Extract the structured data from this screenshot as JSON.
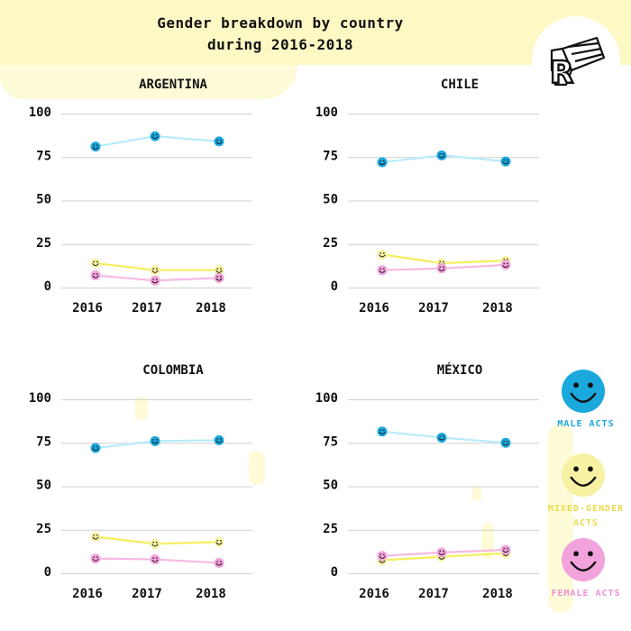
{
  "header": {
    "title_line1": "Gender breakdown by country",
    "title_line2": "during 2016-2018",
    "logo_icon": "r-brand-logo-icon"
  },
  "colors": {
    "male": "#1ba8dd",
    "male_line": "#b6ecfa",
    "mixed": "#f7f2a3",
    "mixed_line": "#f6ee5a",
    "female": "#f3a3dc",
    "female_line": "#f7b9e4",
    "grid": "#d0d0d0",
    "band": "#fcf9c4"
  },
  "legend": [
    {
      "key": "male",
      "label": "MALE ACTS",
      "icon": "smiley-face-icon"
    },
    {
      "key": "mixed",
      "label": "MIXED-GENDER ACTS",
      "icon": "smiley-face-icon"
    },
    {
      "key": "female",
      "label": "FEMALE ACTS",
      "icon": "smiley-face-icon"
    }
  ],
  "chart_data": [
    {
      "type": "line",
      "title": "ARGENTINA",
      "categories": [
        "2016",
        "2017",
        "2018"
      ],
      "ylim": [
        0,
        100
      ],
      "yticks": [
        0,
        25,
        50,
        75,
        100
      ],
      "grid": true,
      "series": [
        {
          "name": "MALE ACTS",
          "key": "male",
          "values": [
            81,
            87,
            84
          ]
        },
        {
          "name": "MIXED-GENDER ACTS",
          "key": "mixed",
          "values": [
            14,
            10,
            10
          ]
        },
        {
          "name": "FEMALE ACTS",
          "key": "female",
          "values": [
            7,
            4,
            5.5
          ]
        }
      ]
    },
    {
      "type": "line",
      "title": "CHILE",
      "categories": [
        "2016",
        "2017",
        "2018"
      ],
      "ylim": [
        0,
        100
      ],
      "yticks": [
        0,
        25,
        50,
        75,
        100
      ],
      "grid": true,
      "series": [
        {
          "name": "MALE ACTS",
          "key": "male",
          "values": [
            72,
            76,
            72.5
          ]
        },
        {
          "name": "MIXED-GENDER ACTS",
          "key": "mixed",
          "values": [
            19,
            14,
            15.5
          ]
        },
        {
          "name": "FEMALE ACTS",
          "key": "female",
          "values": [
            10,
            11,
            13
          ]
        }
      ]
    },
    {
      "type": "line",
      "title": "COLOMBIA",
      "categories": [
        "2016",
        "2017",
        "2018"
      ],
      "ylim": [
        0,
        100
      ],
      "yticks": [
        0,
        25,
        50,
        75,
        100
      ],
      "grid": true,
      "series": [
        {
          "name": "MALE ACTS",
          "key": "male",
          "values": [
            72,
            76,
            76.5
          ]
        },
        {
          "name": "MIXED-GENDER ACTS",
          "key": "mixed",
          "values": [
            21,
            17,
            18
          ]
        },
        {
          "name": "FEMALE ACTS",
          "key": "female",
          "values": [
            8.5,
            8,
            6
          ]
        }
      ]
    },
    {
      "type": "line",
      "title": "MÉXICO",
      "categories": [
        "2016",
        "2017",
        "2018"
      ],
      "ylim": [
        0,
        100
      ],
      "yticks": [
        0,
        25,
        50,
        75,
        100
      ],
      "grid": true,
      "series": [
        {
          "name": "MALE ACTS",
          "key": "male",
          "values": [
            81.5,
            78,
            75
          ]
        },
        {
          "name": "MIXED-GENDER ACTS",
          "key": "mixed",
          "values": [
            7.5,
            9.5,
            11.5
          ]
        },
        {
          "name": "FEMALE ACTS",
          "key": "female",
          "values": [
            10,
            12,
            13.5
          ]
        }
      ]
    }
  ]
}
